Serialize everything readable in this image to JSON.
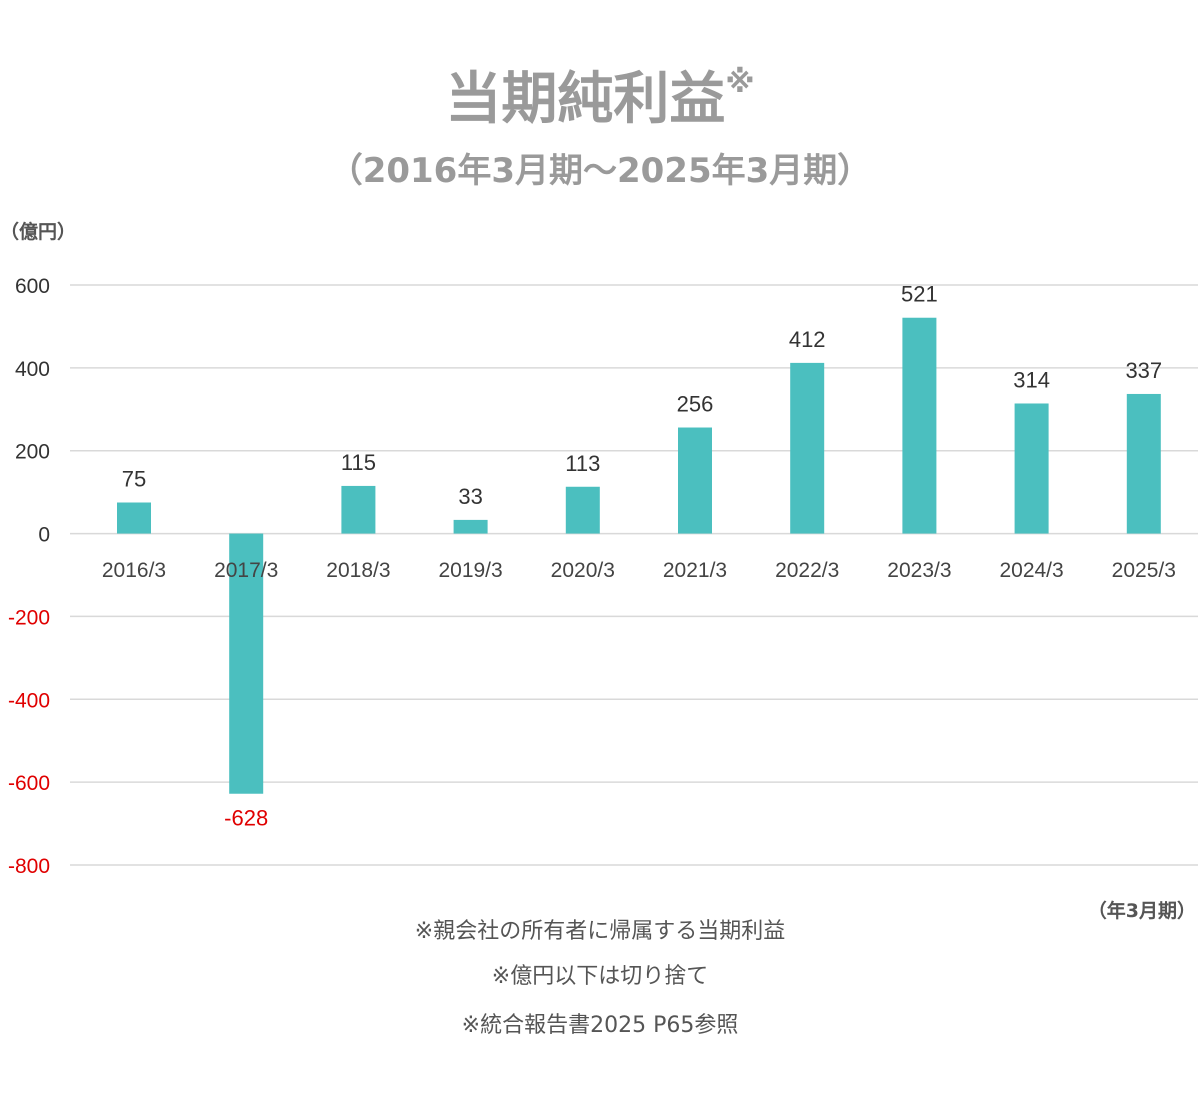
{
  "chart_data": {
    "type": "bar",
    "title": "当期純利益",
    "title_mark": "※",
    "subtitle": "（2016年3月期〜2025年3月期）",
    "ylabel": "（億円）",
    "xlabel": "（年3月期）",
    "ylim": [
      -800,
      600
    ],
    "yticks": [
      600,
      400,
      200,
      0,
      -200,
      -400,
      -600,
      -800
    ],
    "categories": [
      "2016/3",
      "2017/3",
      "2018/3",
      "2019/3",
      "2020/3",
      "2021/3",
      "2022/3",
      "2023/3",
      "2024/3",
      "2025/3"
    ],
    "series": [
      {
        "name": "当期純利益",
        "values": [
          75,
          -628,
          115,
          33,
          113,
          256,
          412,
          521,
          314,
          337
        ]
      }
    ],
    "grid": true,
    "colors": {
      "bar": "#4bbfbf",
      "positive_text": "#333333",
      "negative_text": "#e00000",
      "title": "#9a9a9a"
    }
  },
  "notes": [
    "※親会社の所有者に帰属する当期利益",
    "※億円以下は切り捨て",
    "※統合報告書2025 P65参照"
  ]
}
